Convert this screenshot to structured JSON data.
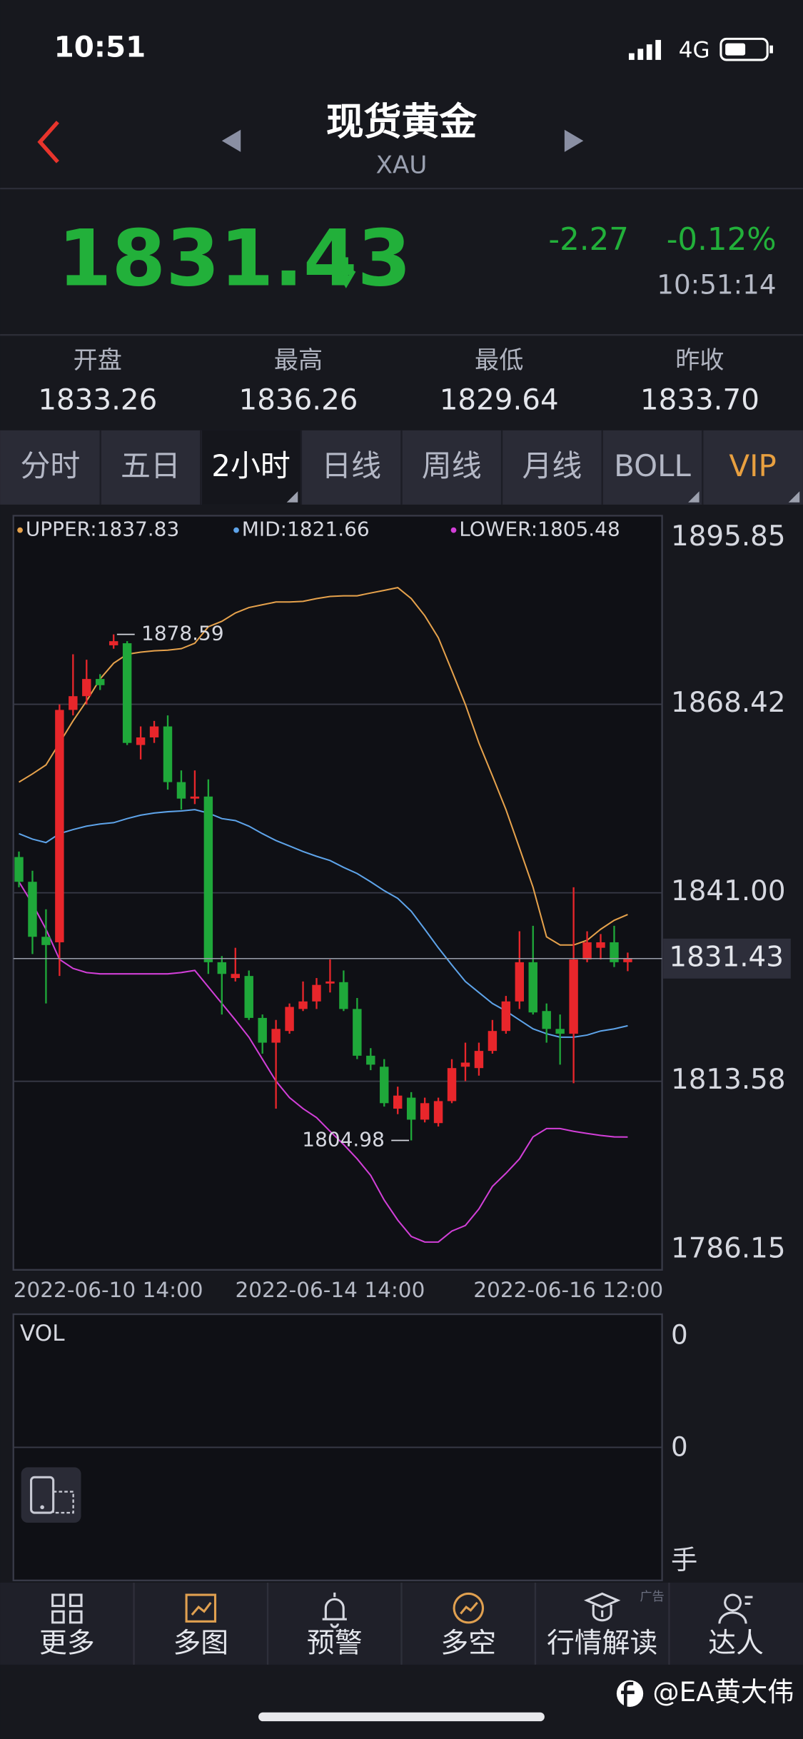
{
  "status_bar": {
    "time": "10:51",
    "network": "4G"
  },
  "header": {
    "title": "现货黄金",
    "subtitle": "XAU"
  },
  "quote": {
    "price": "1831.43",
    "change": "-2.27",
    "change_pct": "-0.12%",
    "time": "10:51:14"
  },
  "stats": [
    {
      "label": "开盘",
      "value": "1833.26"
    },
    {
      "label": "最高",
      "value": "1836.26"
    },
    {
      "label": "最低",
      "value": "1829.64"
    },
    {
      "label": "昨收",
      "value": "1833.70"
    }
  ],
  "tabs": [
    "分时",
    "五日",
    "2小时",
    "日线",
    "周线",
    "月线",
    "BOLL",
    "VIP"
  ],
  "chart_data": {
    "type": "candlestick",
    "categories": [
      "2022-06-10 14:00",
      null,
      null,
      null,
      null,
      null,
      null,
      null,
      null,
      null,
      null,
      null,
      null,
      null,
      null,
      null,
      null,
      null,
      null,
      null,
      null,
      null,
      null,
      "2022-06-14 14:00",
      null,
      null,
      null,
      null,
      null,
      null,
      null,
      null,
      null,
      null,
      null,
      null,
      null,
      null,
      null,
      null,
      null,
      null,
      null,
      null,
      null,
      "2022-06-16 12:00"
    ],
    "open": [
      1846.2,
      1842.6,
      1834.6,
      1833.8,
      1867.6,
      1869.6,
      1872.1,
      1877.0,
      1877.3,
      1862.5,
      1863.6,
      1865.2,
      1857.1,
      1854.7,
      1855.0,
      1830.9,
      1828.6,
      1828.9,
      1822.8,
      1819.2,
      1820.9,
      1824.1,
      1825.2,
      1827.8,
      1828.0,
      1824.1,
      1817.3,
      1815.7,
      1809.6,
      1811.2,
      1808.0,
      1807.5,
      1810.7,
      1815.7,
      1815.5,
      1818.0,
      1820.9,
      1825.2,
      1830.9,
      1823.8,
      1821.2,
      1820.5,
      1831.3,
      1833.0,
      1833.8,
      1830.9
    ],
    "high": [
      1847.0,
      1844.2,
      1838.6,
      1868.4,
      1875.7,
      1874.9,
      1872.8,
      1878.59,
      1877.6,
      1865.2,
      1866.0,
      1866.8,
      1858.8,
      1858.8,
      1857.5,
      1831.8,
      1833.0,
      1829.7,
      1823.3,
      1822.5,
      1824.9,
      1828.1,
      1828.6,
      1831.3,
      1829.7,
      1825.7,
      1818.4,
      1816.8,
      1812.8,
      1812.0,
      1811.2,
      1811.2,
      1816.8,
      1819.2,
      1819.2,
      1822.5,
      1826.0,
      1835.4,
      1836.2,
      1824.9,
      1823.3,
      1841.8,
      1835.4,
      1835.0,
      1836.2,
      1832.3
    ],
    "low": [
      1841.8,
      1832.1,
      1824.9,
      1828.9,
      1866.8,
      1868.4,
      1870.5,
      1876.5,
      1862.5,
      1860.4,
      1862.8,
      1856.0,
      1853.1,
      1853.9,
      1829.2,
      1823.3,
      1828.1,
      1822.5,
      1817.6,
      1809.6,
      1820.5,
      1823.8,
      1824.1,
      1826.5,
      1823.8,
      1816.8,
      1815.2,
      1809.9,
      1808.8,
      1804.98,
      1807.6,
      1807.0,
      1810.4,
      1813.6,
      1814.4,
      1817.6,
      1820.5,
      1824.1,
      1823.3,
      1819.2,
      1816.0,
      1813.3,
      1830.9,
      1831.3,
      1830.2,
      1829.6
    ],
    "close": [
      1842.6,
      1834.6,
      1833.4,
      1867.6,
      1869.6,
      1872.1,
      1871.2,
      1877.6,
      1862.8,
      1863.6,
      1865.2,
      1857.1,
      1854.7,
      1855.0,
      1830.9,
      1829.2,
      1829.2,
      1822.8,
      1819.2,
      1821.2,
      1824.4,
      1825.2,
      1827.6,
      1828.1,
      1824.1,
      1817.3,
      1816.0,
      1810.4,
      1811.5,
      1808.0,
      1810.4,
      1810.7,
      1815.5,
      1816.3,
      1818.0,
      1820.9,
      1825.2,
      1830.9,
      1823.6,
      1821.2,
      1820.5,
      1831.3,
      1833.8,
      1833.8,
      1830.9,
      1831.43
    ],
    "up_color": "#e8262b",
    "down_color": "#1fa83a",
    "lines": [
      {
        "name": "UPPER:",
        "color": "#e6a24c",
        "values": [
          1857.1,
          1858.3,
          1859.6,
          1862.8,
          1866.0,
          1868.9,
          1872.1,
          1874.4,
          1875.7,
          1876.0,
          1876.2,
          1876.3,
          1876.5,
          1877.3,
          1879.7,
          1880.5,
          1881.7,
          1882.5,
          1882.9,
          1883.3,
          1883.3,
          1883.4,
          1883.8,
          1884.1,
          1884.2,
          1884.2,
          1884.6,
          1885.0,
          1885.4,
          1883.8,
          1881.3,
          1878.1,
          1873.3,
          1868.4,
          1862.8,
          1858.0,
          1853.1,
          1847.5,
          1841.8,
          1834.6,
          1833.4,
          1833.4,
          1834.1,
          1835.7,
          1837.0,
          1837.83
        ]
      },
      {
        "name": "MID:",
        "color": "#5ea4ea",
        "values": [
          1849.6,
          1848.8,
          1848.3,
          1849.6,
          1850.2,
          1850.7,
          1851.0,
          1851.2,
          1851.8,
          1852.3,
          1852.6,
          1852.8,
          1852.9,
          1853.1,
          1852.6,
          1851.8,
          1851.5,
          1850.7,
          1849.6,
          1848.6,
          1847.8,
          1847.0,
          1846.3,
          1845.7,
          1844.7,
          1843.8,
          1842.6,
          1841.3,
          1840.2,
          1838.3,
          1835.7,
          1833.0,
          1830.5,
          1828.1,
          1826.5,
          1824.9,
          1823.8,
          1822.5,
          1821.2,
          1820.5,
          1820.0,
          1820.0,
          1820.3,
          1820.9,
          1821.2,
          1821.66
        ]
      },
      {
        "name": "LOWER:",
        "color": "#d23fd8",
        "values": [
          1842.6,
          1839.4,
          1835.7,
          1831.3,
          1830.0,
          1829.4,
          1829.2,
          1829.2,
          1829.2,
          1829.2,
          1829.2,
          1829.2,
          1829.4,
          1829.7,
          1827.3,
          1824.9,
          1822.5,
          1820.0,
          1816.8,
          1813.6,
          1811.2,
          1809.6,
          1808.3,
          1806.3,
          1804.4,
          1802.3,
          1799.9,
          1796.3,
          1793.4,
          1791.0,
          1790.2,
          1790.2,
          1791.8,
          1792.6,
          1795.0,
          1798.3,
          1800.2,
          1802.3,
          1805.5,
          1806.7,
          1806.7,
          1806.3,
          1806.0,
          1805.7,
          1805.5,
          1805.48
        ]
      }
    ],
    "ylim": [
      1786.15,
      1895.85
    ],
    "yticks": [
      1786.15,
      1813.58,
      {
        "value": 1841,
        "label": "1841.00"
      },
      1868.42,
      1895.85
    ],
    "grid": true,
    "max_label": 1878.59,
    "min_label": 1804.98
  },
  "volume_panel": {
    "title": "VOL",
    "yticks": [
      "0",
      "0"
    ],
    "unit": "手"
  },
  "nav": [
    "更多",
    "多图",
    "预警",
    "多空",
    "行情解读",
    "达人"
  ],
  "ad_tag": "广告",
  "watermark": "@EA黄大伟"
}
